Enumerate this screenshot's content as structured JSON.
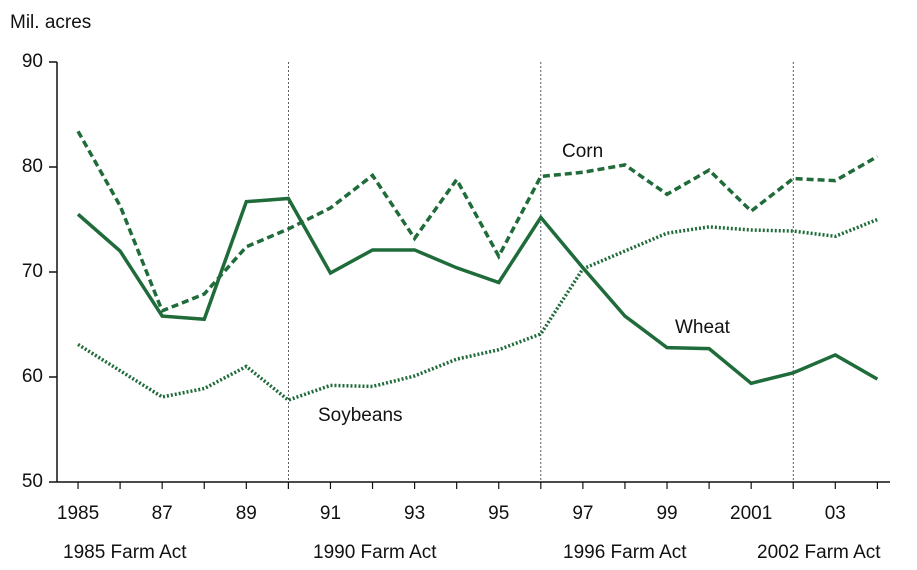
{
  "chart_data": {
    "type": "line",
    "y_label": "Mil. acres",
    "x": [
      1985,
      1986,
      1987,
      1988,
      1989,
      1990,
      1991,
      1992,
      1993,
      1994,
      1995,
      1996,
      1997,
      1998,
      1999,
      2000,
      2001,
      2002,
      2003,
      2004
    ],
    "xlim": [
      1984.5,
      2004.3
    ],
    "xticks": [
      1985,
      {
        "value": 1987,
        "label": "87"
      },
      {
        "value": 1989,
        "label": "89"
      },
      {
        "value": 1991,
        "label": "91"
      },
      {
        "value": 1993,
        "label": "93"
      },
      {
        "value": 1995,
        "label": "95"
      },
      {
        "value": 1997,
        "label": "97"
      },
      {
        "value": 1999,
        "label": "99"
      },
      2001,
      {
        "value": 2003,
        "label": "03"
      }
    ],
    "ylim": [
      50,
      90
    ],
    "yticks": [
      50,
      60,
      70,
      80,
      90
    ],
    "series": [
      {
        "name": "Corn",
        "color": "#1f6b3a",
        "style": "dashed",
        "values": [
          83.4,
          76.3,
          66.3,
          67.9,
          72.4,
          74.1,
          76.1,
          79.2,
          73.2,
          78.8,
          71.5,
          79.1,
          79.5,
          80.2,
          77.4,
          79.7,
          75.8,
          78.9,
          78.7,
          81.0
        ]
      },
      {
        "name": "Wheat",
        "color": "#1f6b3a",
        "style": "solid",
        "values": [
          75.5,
          72.0,
          65.8,
          65.5,
          76.7,
          77.0,
          69.9,
          72.1,
          72.1,
          70.4,
          69.0,
          75.2,
          70.4,
          65.8,
          62.8,
          62.7,
          59.4,
          60.4,
          62.1,
          59.8
        ]
      },
      {
        "name": "Soybeans",
        "color": "#1f6b3a",
        "style": "dotted",
        "values": [
          63.1,
          60.6,
          58.1,
          58.9,
          61.0,
          57.8,
          59.2,
          59.1,
          60.1,
          61.7,
          62.6,
          64.1,
          70.3,
          72.0,
          73.7,
          74.3,
          74.0,
          73.9,
          73.4,
          75.0
        ]
      }
    ],
    "annotations": [
      {
        "text": "1985 Farm Act"
      },
      {
        "text": "1990 Farm Act",
        "x": 1990
      },
      {
        "text": "1996 Farm Act",
        "x": 1996
      },
      {
        "text": "2002 Farm Act",
        "x": 2002
      }
    ]
  }
}
